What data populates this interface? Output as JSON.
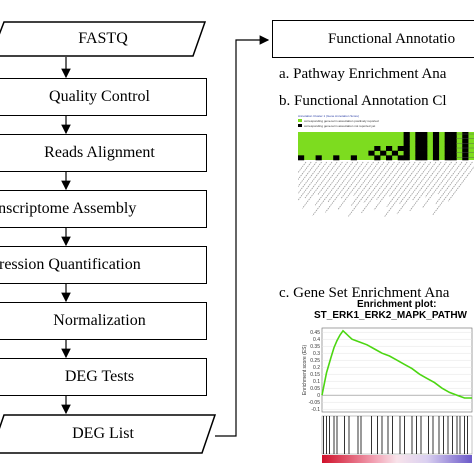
{
  "pipeline": {
    "steps": [
      "FASTQ",
      "Quality Control",
      "Reads Alignment",
      "anscriptome Assembly",
      "pression Quantification",
      "Normalization",
      "DEG Tests",
      "DEG List"
    ]
  },
  "annotation": {
    "title": "Functional Annotatio",
    "items": {
      "a": "a. Pathway Enrichment Ana",
      "b": "b. Functional Annotation Cl",
      "c": "c. Gene Set Enrichment Ana"
    }
  },
  "cluster_panel": {
    "header": "Annotation Cluster 1 (Gene Annotation Score)",
    "legend": [
      {
        "color": "#7ddc1f",
        "label": "corresponding gene-term association positively reported"
      },
      {
        "color": "#000000",
        "label": "corresponding gene-term association not reported yet"
      }
    ]
  },
  "enrichment_plot": {
    "title_line1": "Enrichment plot:",
    "title_line2": "ST_ERK1_ERK2_MAPK_PATHW",
    "ylabel": "Enrichment score (ES)",
    "line_color": "#4cd612",
    "chart_data": {
      "type": "line",
      "ylabel": "Enrichment score (ES)",
      "yticks": [
        0.45,
        0.4,
        0.35,
        0.3,
        0.25,
        0.2,
        0.15,
        0.1,
        0.05,
        0.0,
        -0.05,
        -0.1
      ],
      "ylim": [
        -0.12,
        0.48
      ],
      "x": [
        0,
        0.03,
        0.06,
        0.08,
        0.1,
        0.12,
        0.14,
        0.16,
        0.18,
        0.2,
        0.25,
        0.3,
        0.35,
        0.4,
        0.45,
        0.5,
        0.55,
        0.6,
        0.65,
        0.7,
        0.75,
        0.8,
        0.85,
        0.9,
        0.95,
        1.0
      ],
      "y": [
        0.0,
        0.16,
        0.27,
        0.34,
        0.39,
        0.43,
        0.46,
        0.44,
        0.42,
        0.4,
        0.38,
        0.36,
        0.33,
        0.3,
        0.28,
        0.25,
        0.22,
        0.19,
        0.15,
        0.12,
        0.09,
        0.05,
        0.02,
        0.0,
        -0.02,
        -0.02
      ],
      "hits": [
        0.01,
        0.03,
        0.05,
        0.08,
        0.1,
        0.15,
        0.18,
        0.24,
        0.26,
        0.33,
        0.37,
        0.4,
        0.44,
        0.47,
        0.52,
        0.55,
        0.6,
        0.63,
        0.66,
        0.71,
        0.74,
        0.78,
        0.81,
        0.84,
        0.87,
        0.9,
        0.92,
        0.95,
        0.97
      ]
    }
  }
}
